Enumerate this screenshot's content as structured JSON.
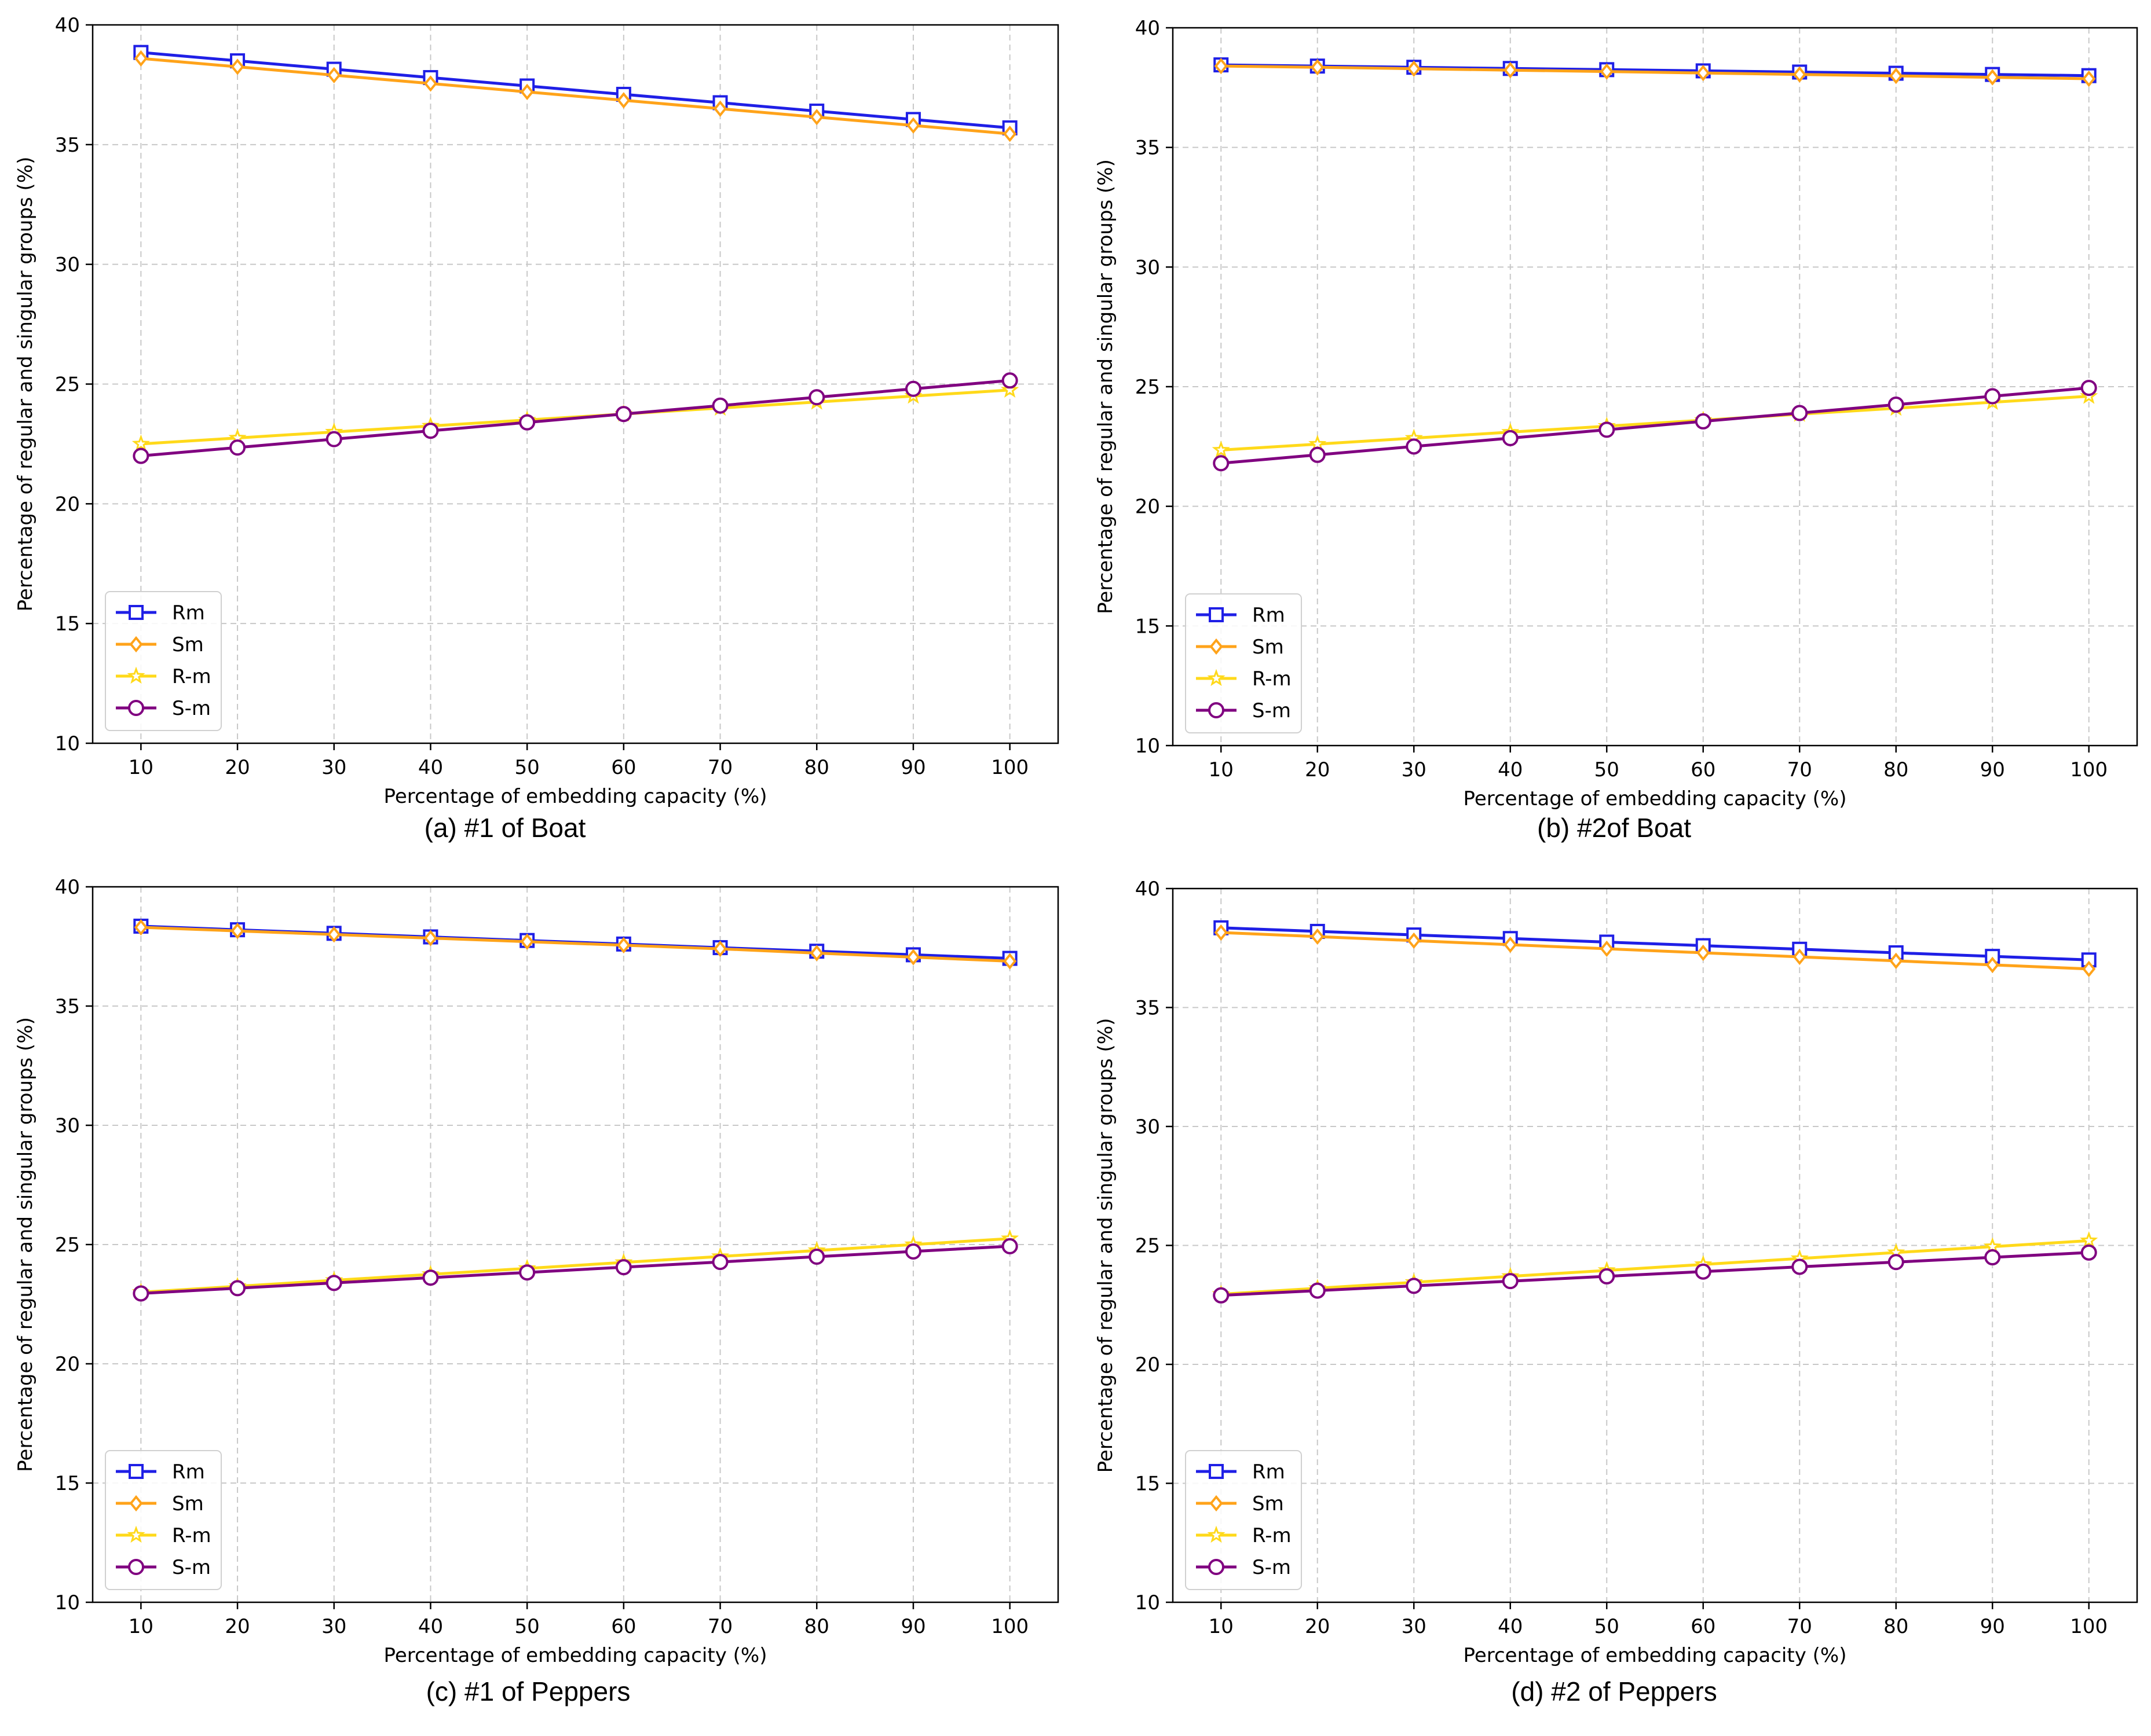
{
  "figure": {
    "captions": [
      "(a) #1 of Boat",
      "(b) #2of Boat",
      "(c) #1 of Peppers",
      "(d) #2 of Peppers"
    ]
  },
  "series_styles": [
    {
      "name": "Rm",
      "color": "#1f1fe6",
      "marker": "square"
    },
    {
      "name": "Sm",
      "color": "#ffa31a",
      "marker": "diamond"
    },
    {
      "name": "R-m",
      "color": "#ffd91a",
      "marker": "star"
    },
    {
      "name": "S-m",
      "color": "#800080",
      "marker": "circle"
    }
  ],
  "chart_data": [
    {
      "type": "line",
      "title": "(a) #1 of Boat",
      "xlabel": "Percentage of embedding capacity (%)",
      "ylabel": "Percentage of regular and singular groups (%)",
      "x": [
        10,
        20,
        30,
        40,
        50,
        60,
        70,
        80,
        90,
        100
      ],
      "xlim": [
        5,
        105
      ],
      "ylim": [
        10,
        40
      ],
      "xticks": [
        10,
        20,
        30,
        40,
        50,
        60,
        70,
        80,
        90,
        100
      ],
      "yticks": [
        10,
        15,
        20,
        25,
        30,
        35,
        40
      ],
      "grid": true,
      "legend": "lower-left",
      "series": [
        {
          "name": "Rm",
          "values": [
            38.85,
            38.5,
            38.15,
            37.8,
            37.45,
            37.1,
            36.75,
            36.4,
            36.05,
            35.7
          ]
        },
        {
          "name": "Sm",
          "values": [
            38.6,
            38.25,
            37.9,
            37.55,
            37.2,
            36.85,
            36.5,
            36.15,
            35.8,
            35.45
          ]
        },
        {
          "name": "R-m",
          "values": [
            22.5,
            22.75,
            23.0,
            23.25,
            23.5,
            23.75,
            24.0,
            24.25,
            24.5,
            24.75
          ]
        },
        {
          "name": "S-m",
          "values": [
            22.0,
            22.35,
            22.7,
            23.05,
            23.4,
            23.75,
            24.1,
            24.45,
            24.8,
            25.15
          ]
        }
      ]
    },
    {
      "type": "line",
      "title": "(b) #2of Boat",
      "xlabel": "Percentage of embedding capacity (%)",
      "ylabel": "Percentage of regular and singular groups (%)",
      "x": [
        10,
        20,
        30,
        40,
        50,
        60,
        70,
        80,
        90,
        100
      ],
      "xlim": [
        5,
        105
      ],
      "ylim": [
        10,
        40
      ],
      "xticks": [
        10,
        20,
        30,
        40,
        50,
        60,
        70,
        80,
        90,
        100
      ],
      "yticks": [
        10,
        15,
        20,
        25,
        30,
        35,
        40
      ],
      "grid": true,
      "legend": "lower-left",
      "series": [
        {
          "name": "Rm",
          "values": [
            38.45,
            38.4,
            38.35,
            38.3,
            38.25,
            38.2,
            38.15,
            38.1,
            38.05,
            38.0
          ]
        },
        {
          "name": "Sm",
          "values": [
            38.4,
            38.35,
            38.29,
            38.23,
            38.17,
            38.11,
            38.05,
            37.99,
            37.93,
            37.87
          ]
        },
        {
          "name": "R-m",
          "values": [
            22.35,
            22.6,
            22.85,
            23.1,
            23.35,
            23.6,
            23.85,
            24.1,
            24.35,
            24.6
          ]
        },
        {
          "name": "S-m",
          "values": [
            21.8,
            22.15,
            22.5,
            22.85,
            23.2,
            23.55,
            23.9,
            24.25,
            24.6,
            24.95
          ]
        }
      ]
    },
    {
      "type": "line",
      "title": "(c) #1 of Peppers",
      "xlabel": "Percentage of embedding capacity (%)",
      "ylabel": "Percentage of regular and singular groups (%)",
      "x": [
        10,
        20,
        30,
        40,
        50,
        60,
        70,
        80,
        90,
        100
      ],
      "xlim": [
        5,
        105
      ],
      "ylim": [
        10,
        40
      ],
      "xticks": [
        10,
        20,
        30,
        40,
        50,
        60,
        70,
        80,
        90,
        100
      ],
      "yticks": [
        10,
        15,
        20,
        25,
        30,
        35,
        40
      ],
      "grid": true,
      "legend": "lower-left",
      "series": [
        {
          "name": "Rm",
          "values": [
            38.35,
            38.2,
            38.05,
            37.9,
            37.75,
            37.6,
            37.45,
            37.3,
            37.15,
            37.0
          ]
        },
        {
          "name": "Sm",
          "values": [
            38.3,
            38.15,
            38.0,
            37.85,
            37.7,
            37.55,
            37.4,
            37.22,
            37.05,
            36.88
          ]
        },
        {
          "name": "R-m",
          "values": [
            23.0,
            23.25,
            23.5,
            23.75,
            24.0,
            24.25,
            24.5,
            24.75,
            25.0,
            25.25
          ]
        },
        {
          "name": "S-m",
          "values": [
            22.95,
            23.17,
            23.39,
            23.61,
            23.83,
            24.05,
            24.27,
            24.49,
            24.71,
            24.93
          ]
        }
      ]
    },
    {
      "type": "line",
      "title": "(d) #2 of Peppers",
      "xlabel": "Percentage of embedding capacity (%)",
      "ylabel": "Percentage of regular and singular groups (%)",
      "x": [
        10,
        20,
        30,
        40,
        50,
        60,
        70,
        80,
        90,
        100
      ],
      "xlim": [
        5,
        105
      ],
      "ylim": [
        10,
        40
      ],
      "xticks": [
        10,
        20,
        30,
        40,
        50,
        60,
        70,
        80,
        90,
        100
      ],
      "yticks": [
        10,
        15,
        20,
        25,
        30,
        35,
        40
      ],
      "grid": true,
      "legend": "lower-left",
      "series": [
        {
          "name": "Rm",
          "values": [
            38.35,
            38.2,
            38.05,
            37.9,
            37.75,
            37.6,
            37.45,
            37.3,
            37.15,
            37.0
          ]
        },
        {
          "name": "Sm",
          "values": [
            38.15,
            37.98,
            37.81,
            37.64,
            37.47,
            37.3,
            37.13,
            36.96,
            36.79,
            36.62
          ]
        },
        {
          "name": "R-m",
          "values": [
            22.95,
            23.2,
            23.45,
            23.7,
            23.95,
            24.2,
            24.45,
            24.7,
            24.95,
            25.2
          ]
        },
        {
          "name": "S-m",
          "values": [
            22.9,
            23.1,
            23.3,
            23.5,
            23.7,
            23.9,
            24.1,
            24.3,
            24.5,
            24.7
          ]
        }
      ]
    }
  ]
}
